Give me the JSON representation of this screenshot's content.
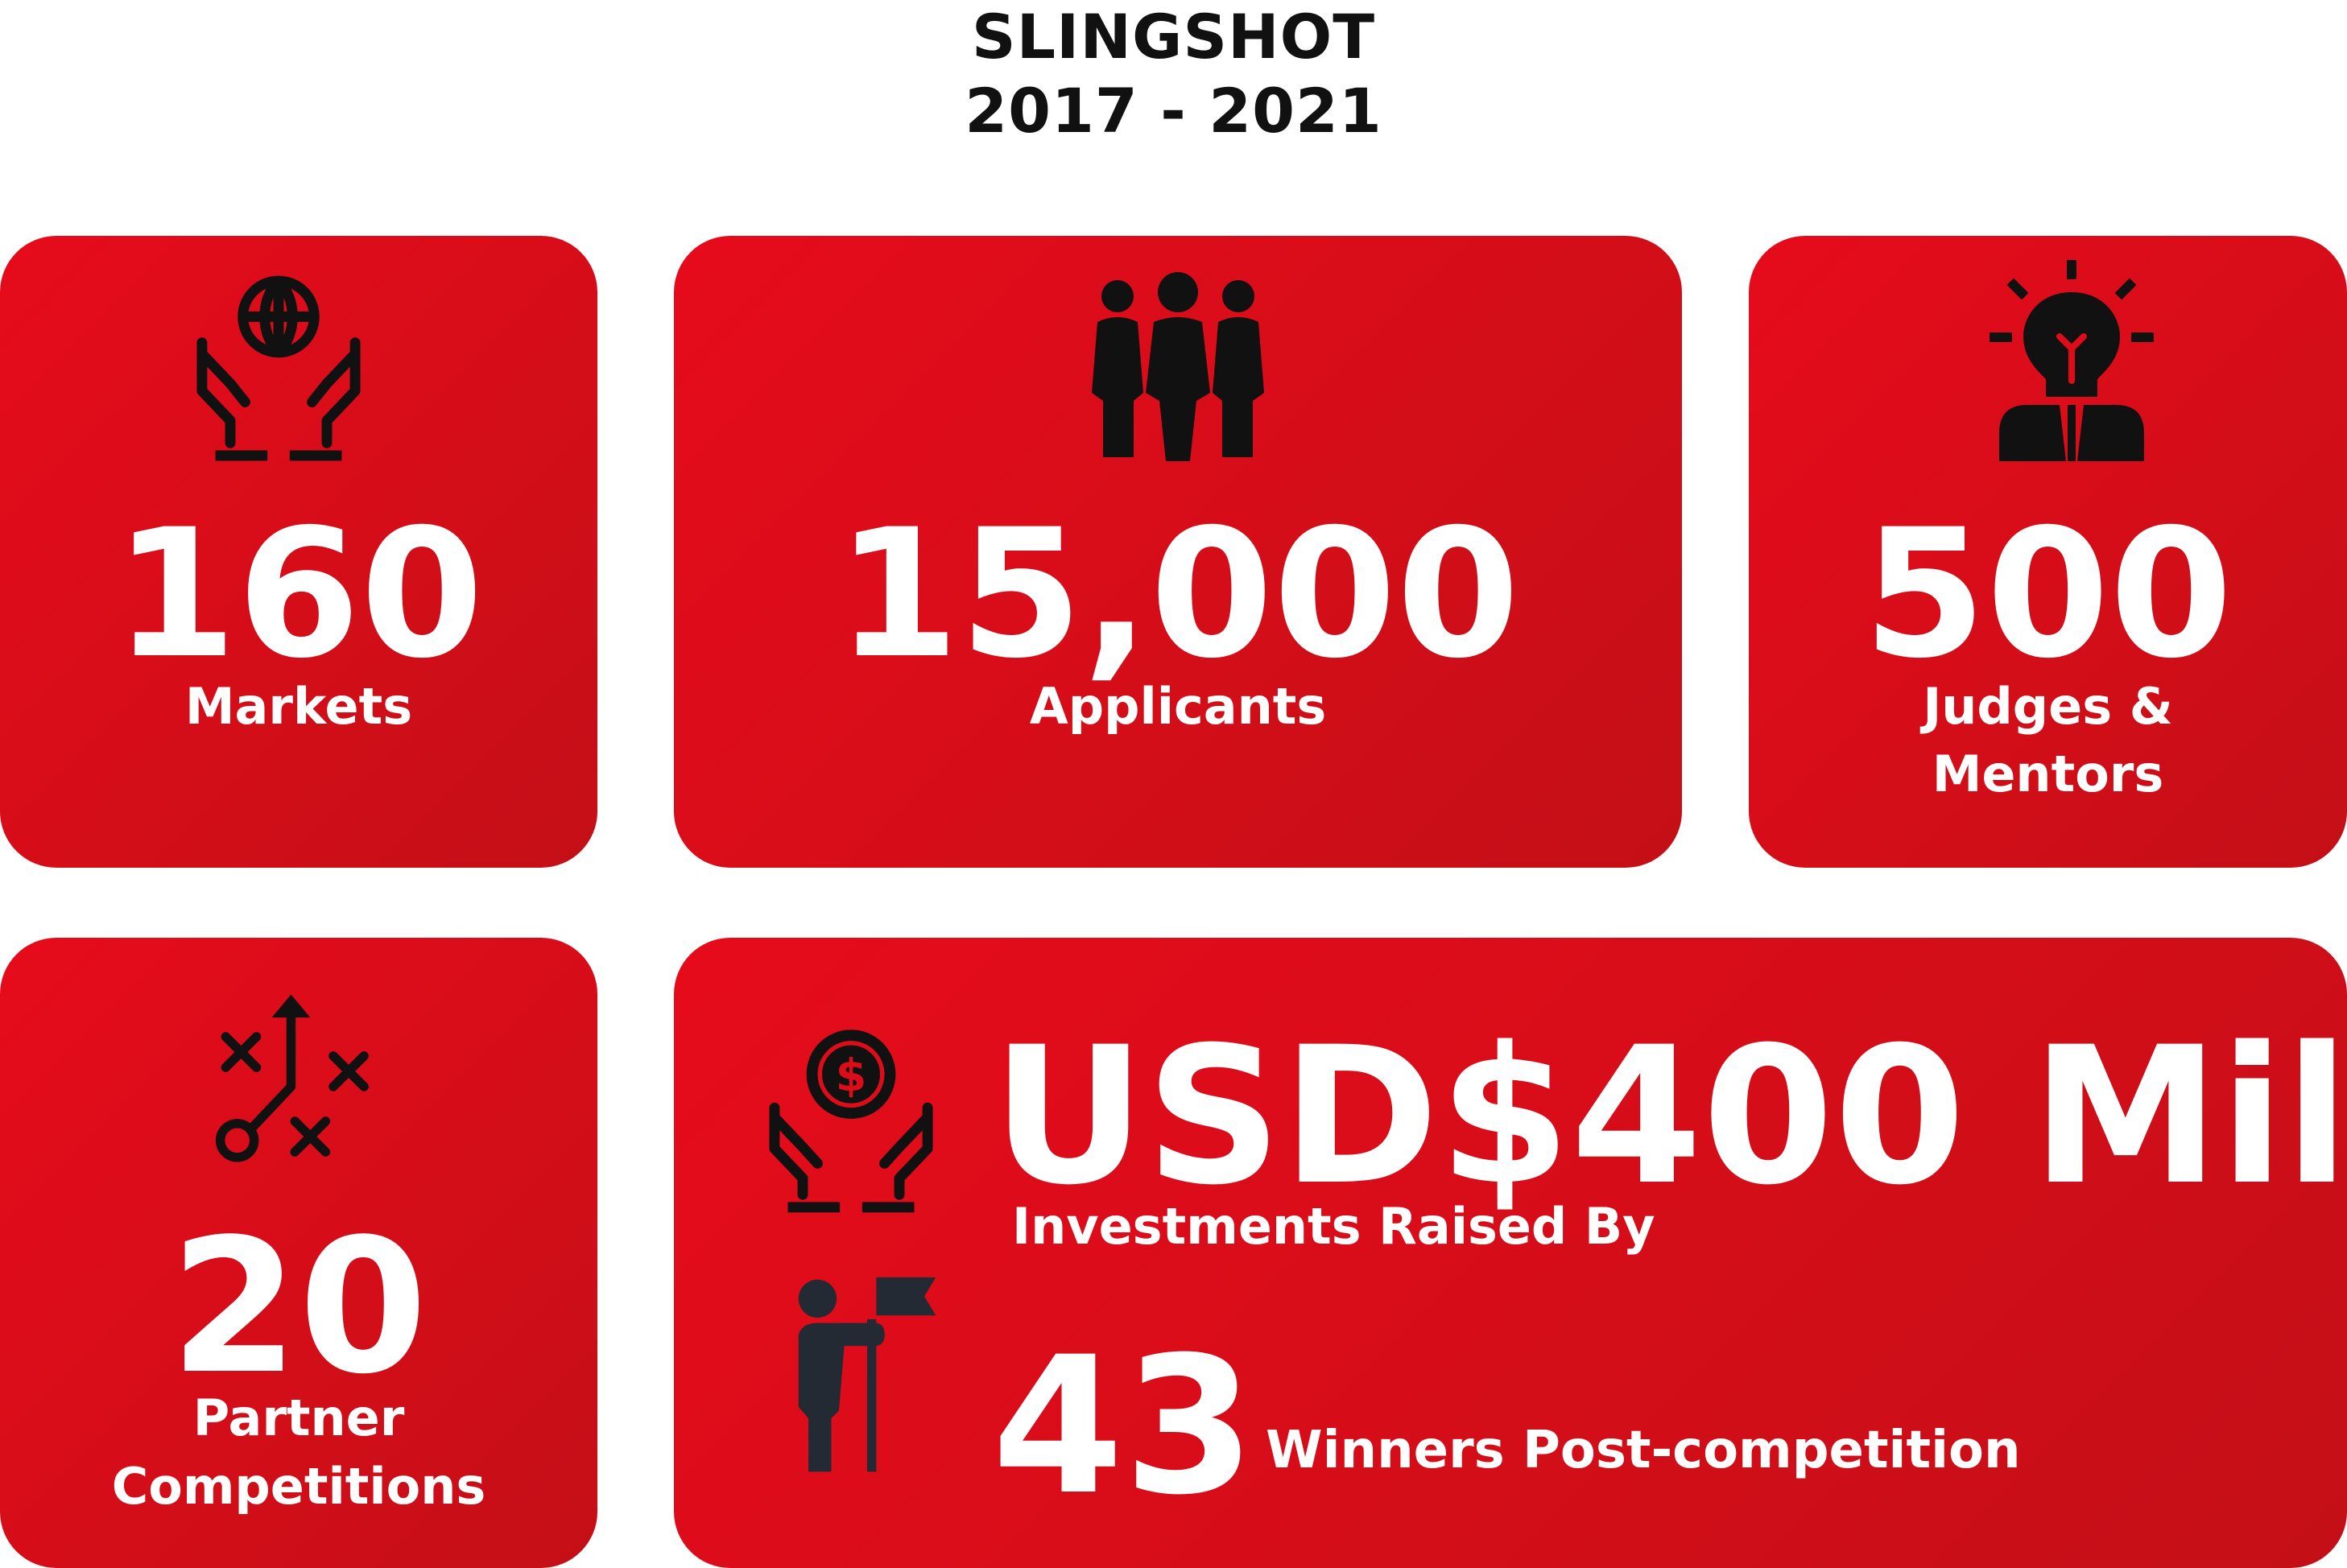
{
  "header": {
    "title": "SLINGSHOT",
    "years": "2017 - 2021"
  },
  "cards": {
    "markets": {
      "value": "160",
      "label": "Markets",
      "icon": "globe-in-hands-icon"
    },
    "applicants": {
      "value": "15,000",
      "label": "Applicants",
      "icon": "people-group-icon"
    },
    "judges": {
      "value": "500",
      "label_line1": "Judges &",
      "label_line2": "Mentors",
      "icon": "lightbulb-person-icon"
    },
    "partners": {
      "value": "20",
      "label_line1": "Partner",
      "label_line2": "Competitions",
      "icon": "strategy-play-icon"
    },
    "investments": {
      "value": "USD$400 Mil",
      "label": "Investments Raised By",
      "winners_value": "43",
      "winners_label": "Winners Post-competition",
      "icon": "money-in-hands-icon",
      "winners_icon": "person-with-flag-icon"
    }
  },
  "colors": {
    "card_red": "#dc0d19",
    "text": "#ffffff",
    "header": "#111111",
    "icon_dark": "#1e1e1e"
  }
}
